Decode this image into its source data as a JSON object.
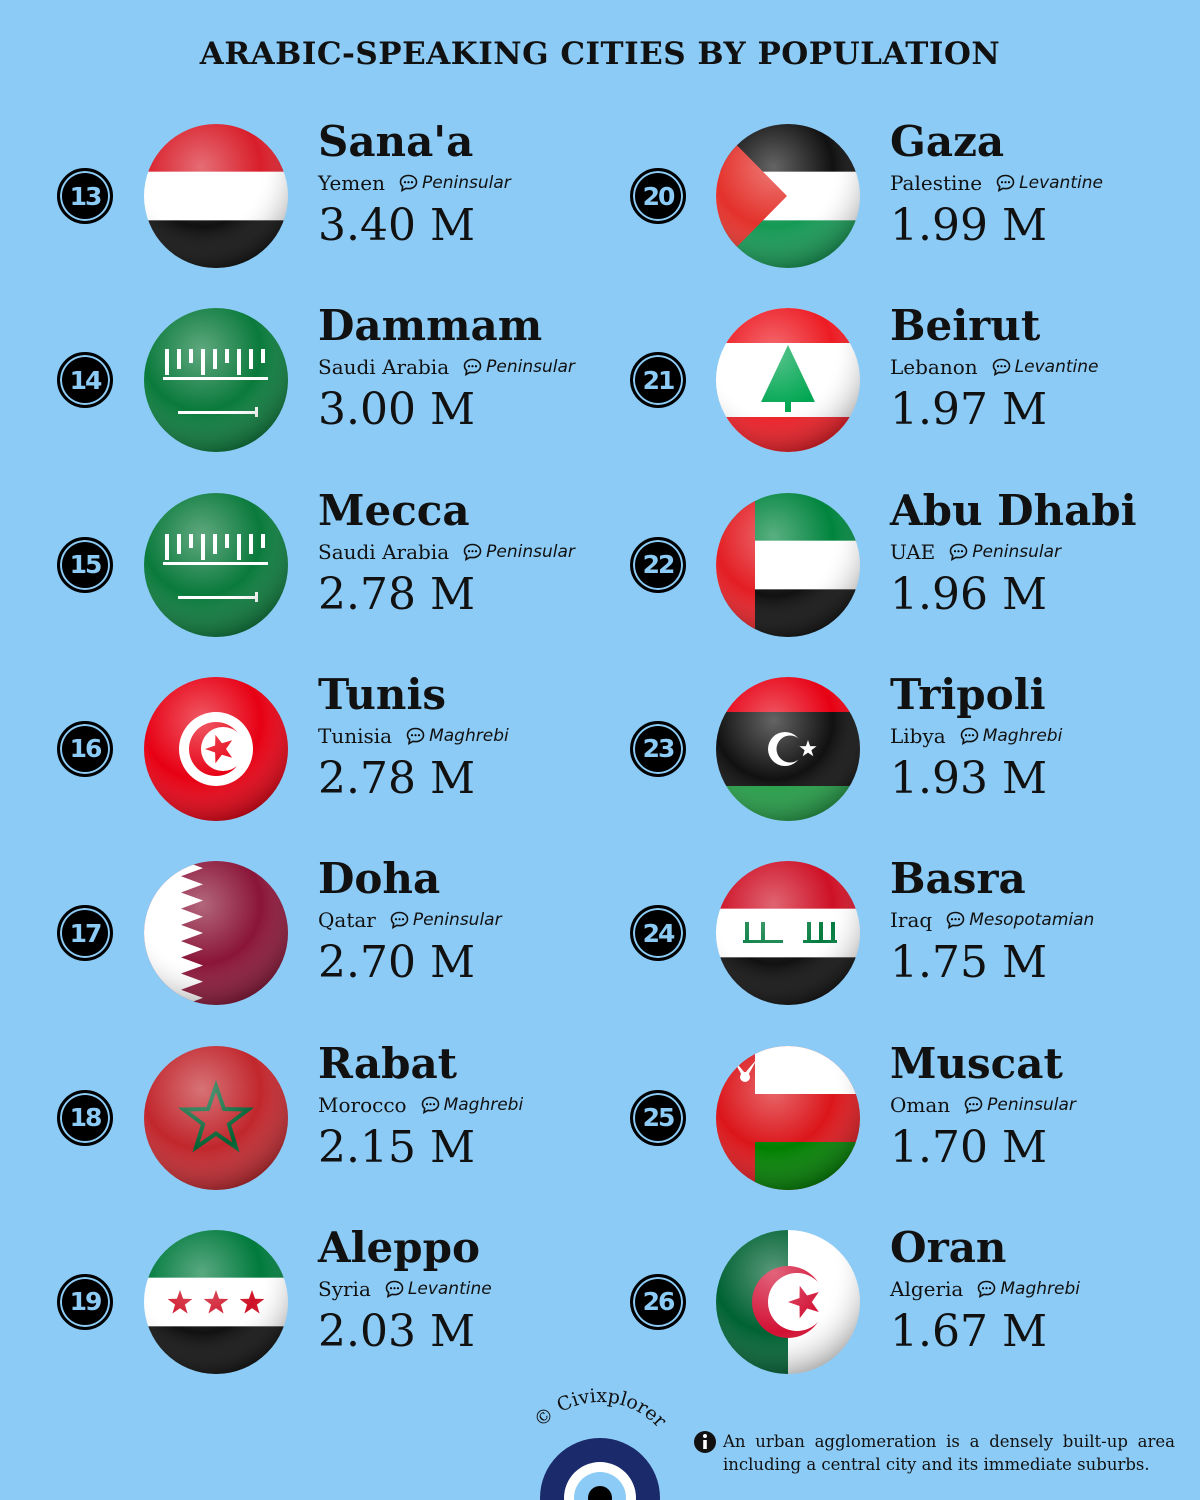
{
  "header": {
    "title": "ARABIC-SPEAKING CITIES BY POPULATION"
  },
  "cities": [
    {
      "rank": 13,
      "city": "Sana'a",
      "country": "Yemen",
      "dialect": "Peninsular",
      "population": "3.40 M"
    },
    {
      "rank": 14,
      "city": "Dammam",
      "country": "Saudi Arabia",
      "dialect": "Peninsular",
      "population": "3.00 M"
    },
    {
      "rank": 15,
      "city": "Mecca",
      "country": "Saudi Arabia",
      "dialect": "Peninsular",
      "population": "2.78 M"
    },
    {
      "rank": 16,
      "city": "Tunis",
      "country": "Tunisia",
      "dialect": "Maghrebi",
      "population": "2.78 M"
    },
    {
      "rank": 17,
      "city": "Doha",
      "country": "Qatar",
      "dialect": "Peninsular",
      "population": "2.70 M"
    },
    {
      "rank": 18,
      "city": "Rabat",
      "country": "Morocco",
      "dialect": "Maghrebi",
      "population": "2.15 M"
    },
    {
      "rank": 19,
      "city": "Aleppo",
      "country": "Syria",
      "dialect": "Levantine",
      "population": "2.03 M"
    },
    {
      "rank": 20,
      "city": "Gaza",
      "country": "Palestine",
      "dialect": "Levantine",
      "population": "1.99 M"
    },
    {
      "rank": 21,
      "city": "Beirut",
      "country": "Lebanon",
      "dialect": "Levantine",
      "population": "1.97 M"
    },
    {
      "rank": 22,
      "city": "Abu Dhabi",
      "country": "UAE",
      "dialect": "Peninsular",
      "population": "1.96 M"
    },
    {
      "rank": 23,
      "city": "Tripoli",
      "country": "Libya",
      "dialect": "Maghrebi",
      "population": "1.93 M"
    },
    {
      "rank": 24,
      "city": "Basra",
      "country": "Iraq",
      "dialect": "Mesopotamian",
      "population": "1.75 M"
    },
    {
      "rank": 25,
      "city": "Muscat",
      "country": "Oman",
      "dialect": "Peninsular",
      "population": "1.70 M"
    },
    {
      "rank": 26,
      "city": "Oran",
      "country": "Algeria",
      "dialect": "Maghrebi",
      "population": "1.67 M"
    }
  ],
  "footer": {
    "credit": "© Civixplorer",
    "note": "An urban agglomeration is a densely built-up area including a central city and its immediate suburbs."
  }
}
